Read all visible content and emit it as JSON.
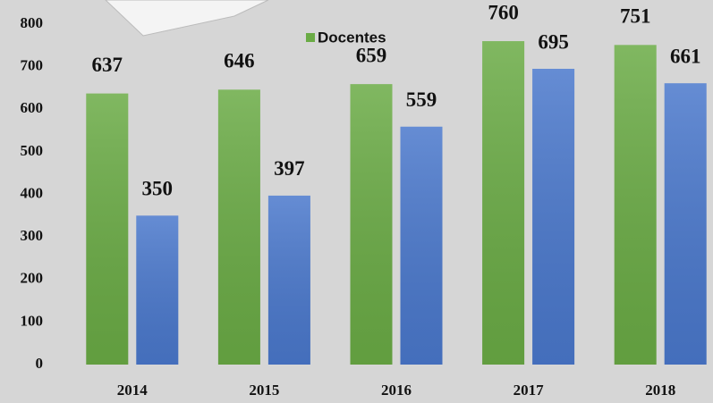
{
  "chart_data": {
    "type": "bar",
    "categories": [
      "2014",
      "2015",
      "2016",
      "2017",
      "2018"
    ],
    "series": [
      {
        "name": "Docentes",
        "color": "#6aab45",
        "values": [
          637,
          646,
          659,
          760,
          751
        ]
      },
      {
        "color": "#4a78cc",
        "values": [
          350,
          397,
          559,
          695,
          661
        ]
      }
    ],
    "ylim": [
      0,
      800
    ],
    "yticks": [
      0,
      100,
      200,
      300,
      400,
      500,
      600,
      700,
      800
    ],
    "grid": false,
    "legend": "top"
  }
}
